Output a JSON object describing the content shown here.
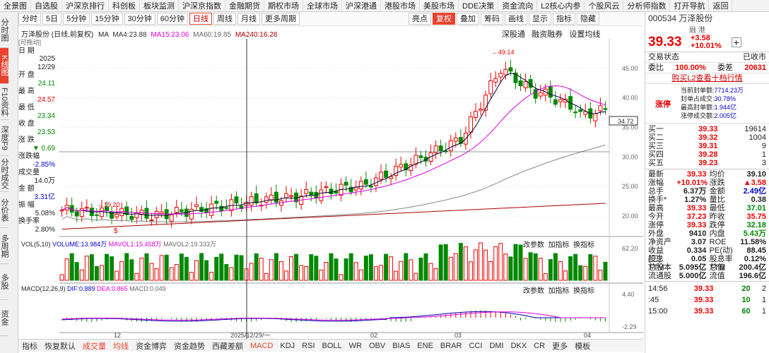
{
  "menu": [
    "全景图",
    "自选股",
    "沪深京排行",
    "科创板",
    "板块监测",
    "沪深京指数",
    "金融期货",
    "期权市场",
    "全球市场",
    "沪深港通",
    "港股市场",
    "美股市场",
    "DDE决策",
    "资金流向",
    "L2核心内参",
    "个股风云",
    "分析师指数",
    "打开导航",
    "返回"
  ],
  "sidebar": [
    "分时图",
    "K线图",
    "F10资料",
    "深度F9",
    "分时成交",
    "分价表",
    "多周期",
    "多股",
    "资金"
  ],
  "toolbar": {
    "items": [
      "分时",
      "5日",
      "5分钟",
      "15分钟",
      "30分钟",
      "60分钟",
      "日线",
      "周线",
      "月线",
      "更多周期"
    ],
    "right": [
      "亮点",
      "复权",
      "叠加",
      "筹码",
      "画线",
      "显示",
      "指标",
      "隐藏"
    ]
  },
  "stock": {
    "code": "000534",
    "name": "万泽股份",
    "tags": "融 港",
    "price": "39.33",
    "chg": "+3.58",
    "pct": "+10.01%"
  },
  "chart": {
    "title": "万泽股份 (日线,前复权)",
    "ma_label": "MA",
    "ma4": "MA4:23.88",
    "ma15": "MA15:23.06",
    "ma60": "MA60:19.85",
    "ma240": "MA240:16.28",
    "btns": [
      "深股通",
      "融资融券",
      "设置均线"
    ],
    "high_mark": "49.14",
    "low_mark": "19.20",
    "last_price": "34.72",
    "price_ticks": [
      "45.00",
      "40.00",
      "35.00",
      "30.00",
      "25.00",
      "20.00"
    ],
    "dates": [
      "12",
      "2025/12/29/一",
      "02",
      "03",
      "04"
    ]
  },
  "infobox": [
    [
      "日  期",
      ""
    ],
    [
      "",
      "2025"
    ],
    [
      "",
      "12/29"
    ],
    [
      "开  盘",
      ""
    ],
    [
      "",
      "24.11"
    ],
    [
      "最  高",
      ""
    ],
    [
      "",
      "24.57"
    ],
    [
      "最  低",
      ""
    ],
    [
      "",
      "23.34"
    ],
    [
      "收  盘",
      ""
    ],
    [
      "",
      "23.53"
    ],
    [
      "涨  跌",
      ""
    ],
    [
      "",
      "▼ 0.69"
    ],
    [
      "涨跌幅",
      ""
    ],
    [
      "",
      "-2.85%"
    ],
    [
      "成交量",
      ""
    ],
    [
      "",
      "14.0万"
    ],
    [
      "金  额",
      ""
    ],
    [
      "",
      "3.31亿"
    ],
    [
      "振  幅",
      ""
    ],
    [
      "",
      "5.08%"
    ],
    [
      "换手率",
      ""
    ],
    [
      "",
      "2.80%"
    ]
  ],
  "drag": "[可拖动]",
  "vol": {
    "label": "VOL(5,10)",
    "v1": "VOLUME:13.984万",
    "v2": "MAVOL1:15.458万",
    "v3": "MAVOL2:19.333万",
    "btns": [
      "改参数",
      "加指标",
      "换指标"
    ],
    "tick": "62.20"
  },
  "macd": {
    "label": "MACD(12,26,9)",
    "dif": "DIF:0.889",
    "dea": "DEA:0.865",
    "m": "MACD:0.049",
    "btns": [
      "改参数",
      "加指标",
      "换指标"
    ],
    "t1": "4.40",
    "t2": "-2.29"
  },
  "bottom": [
    "指标",
    "恢复默认",
    "成交量",
    "均线",
    "资金博弈",
    "资金趋势",
    "西藏差额",
    "MACD",
    "KDJ",
    "RSI",
    "BOLL",
    "WR",
    "OBV",
    "BIAS",
    "ENE",
    "BRAR",
    "CCI",
    "DMI",
    "DKX",
    "CR",
    "更多",
    "模板"
  ],
  "rp": {
    "state_label": "交易状态",
    "state": "已收市",
    "wb_label": "委比",
    "wb": "100.00%",
    "wc_label": "委差",
    "wc": "20631",
    "l2": "购买L2查看十档行情",
    "zt": "涨停",
    "zt_rows": [
      [
        "当前封单额:",
        "7714.23万"
      ],
      [
        "封单占成交:",
        "30.78%"
      ],
      [
        "最高封单额:",
        "1.944亿"
      ],
      [
        "涨停成交额:",
        "2.005亿"
      ]
    ],
    "bids": [
      [
        "买一",
        "39.33",
        "19614"
      ],
      [
        "买二",
        "39.32",
        "1004"
      ],
      [
        "买三",
        "39.31",
        "9"
      ],
      [
        "买四",
        "39.28",
        "1"
      ],
      [
        "买五",
        "39.23",
        "3"
      ]
    ],
    "stats": [
      [
        "最新",
        "39.33",
        "均价",
        "39.10"
      ],
      [
        "涨幅",
        "+10.01%",
        "涨跌",
        "▲3.58"
      ],
      [
        "总手",
        "6.37万",
        "金额",
        "2.49亿"
      ],
      [
        "换手*",
        "1.27%",
        "量比",
        "0.38"
      ],
      [
        "最高",
        "39.33",
        "最低",
        "37.01"
      ],
      [
        "今开",
        "37.23",
        "昨收",
        "35.75"
      ],
      [
        "涨停",
        "39.33",
        "跌停",
        "32.18"
      ],
      [
        "外盘",
        "9410",
        "内盘",
        "5.43万"
      ],
      [
        "净资产",
        "3.07",
        "ROE",
        "11.58%"
      ],
      [
        "收益(三)",
        "0.334",
        "PE(动)",
        "88.45"
      ],
      [
        "股息TTM",
        "0.05",
        "股息率TTM",
        "0.12%"
      ],
      [
        "总股本",
        "5.095亿",
        "总值",
        "200.4亿"
      ],
      [
        "流通股",
        "5.000亿",
        "流值",
        "196.6亿"
      ]
    ],
    "ticks": [
      [
        "14:56",
        "39.33",
        "20",
        "2"
      ],
      [
        ":45",
        "39.33",
        "10",
        "1"
      ],
      [
        "15:00",
        "39.33",
        "60",
        "1"
      ]
    ]
  }
}
